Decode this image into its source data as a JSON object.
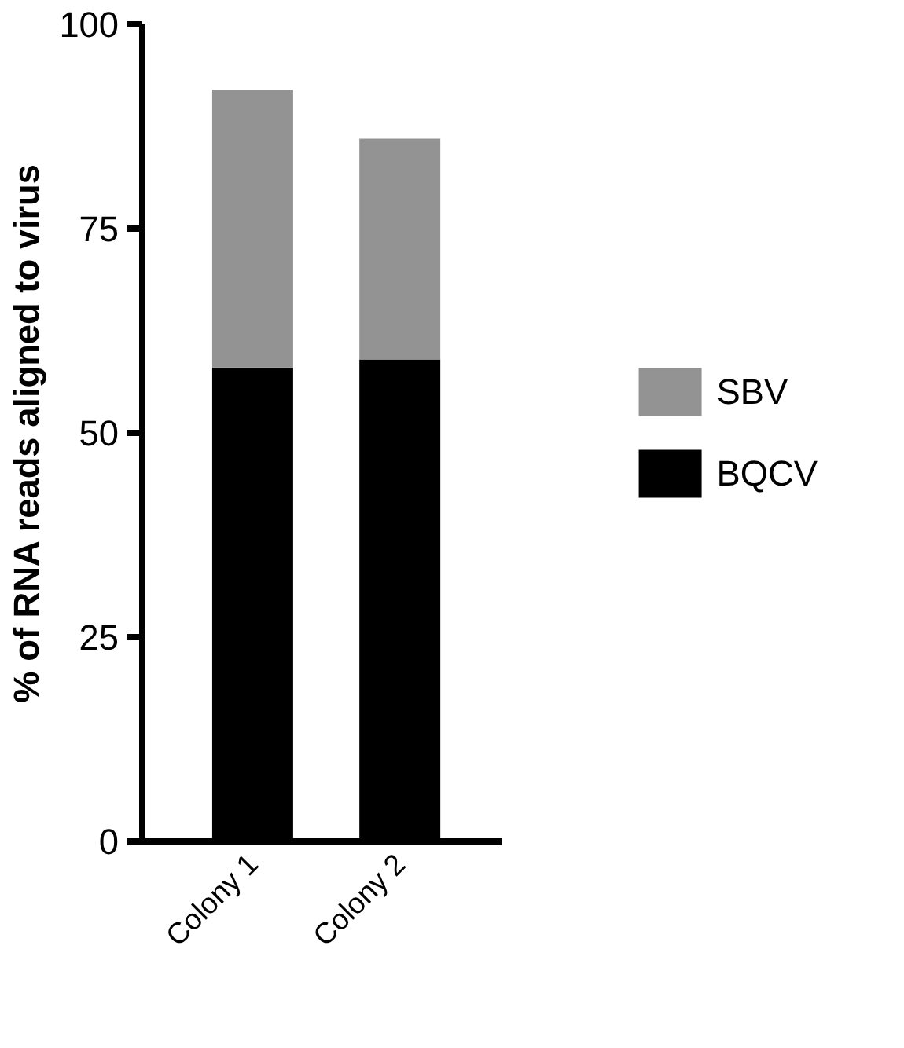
{
  "chart_data": {
    "type": "bar",
    "stacked": true,
    "ylabel": "% of RNA reads aligned to virus",
    "categories": [
      "Colony 1",
      "Colony 2"
    ],
    "series": [
      {
        "name": "BQCV",
        "color": "#000000",
        "values": [
          58,
          59
        ]
      },
      {
        "name": "SBV",
        "color": "#939393",
        "values": [
          34,
          27
        ]
      }
    ],
    "ylim": [
      0,
      100
    ],
    "yticks": [
      0,
      25,
      50,
      75,
      100
    ],
    "grid": false,
    "legend": "right"
  }
}
